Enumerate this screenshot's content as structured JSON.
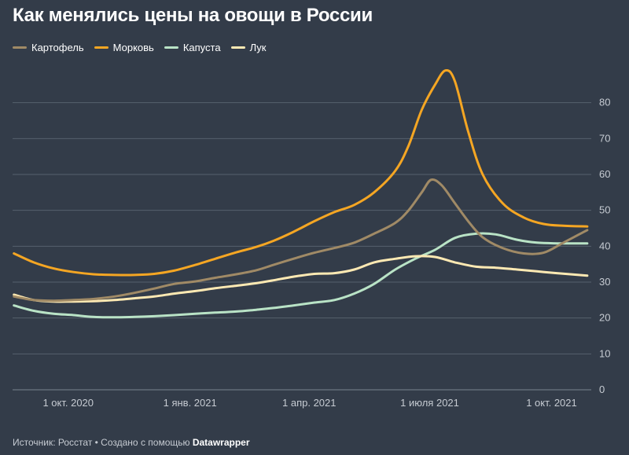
{
  "title": "Как менялись цены на овощи в России",
  "footer": {
    "source": "Источник: Росстат • Создано с помощью ",
    "brand": "Datawrapper"
  },
  "chart_data": {
    "type": "line",
    "title": "Как менялись цены на овощи в России",
    "xlabel": "",
    "ylabel": "",
    "ylim": [
      0,
      90
    ],
    "yticks": [
      0,
      10,
      20,
      30,
      40,
      50,
      60,
      70,
      80
    ],
    "xlim": [
      "2020-08-20",
      "2021-10-31"
    ],
    "xticks": [
      {
        "date": "2020-10-01",
        "label": "1 окт. 2020"
      },
      {
        "date": "2021-01-01",
        "label": "1 янв. 2021"
      },
      {
        "date": "2021-04-01",
        "label": "1 апр. 2021"
      },
      {
        "date": "2021-07-01",
        "label": "1 июля 2021"
      },
      {
        "date": "2021-10-01",
        "label": "1 окт. 2021"
      }
    ],
    "grid": true,
    "legend_position": "top-left",
    "colors": {
      "background": "#333c49",
      "grid": "#56606d",
      "text": "#ffffff",
      "axis_text": "#c6cbd2"
    },
    "series": [
      {
        "name": "Картофель",
        "color": "#a08a66",
        "points": [
          [
            "2020-08-21",
            26.0
          ],
          [
            "2020-09-05",
            25.0
          ],
          [
            "2020-09-20",
            24.8
          ],
          [
            "2020-10-05",
            25.0
          ],
          [
            "2020-10-20",
            25.3
          ],
          [
            "2020-11-05",
            26.0
          ],
          [
            "2020-11-20",
            27.0
          ],
          [
            "2020-12-05",
            28.2
          ],
          [
            "2020-12-20",
            29.5
          ],
          [
            "2021-01-05",
            30.2
          ],
          [
            "2021-01-20",
            31.2
          ],
          [
            "2021-02-05",
            32.2
          ],
          [
            "2021-02-20",
            33.3
          ],
          [
            "2021-03-05",
            34.8
          ],
          [
            "2021-03-20",
            36.5
          ],
          [
            "2021-04-05",
            38.2
          ],
          [
            "2021-04-20",
            39.5
          ],
          [
            "2021-05-05",
            41.0
          ],
          [
            "2021-05-20",
            43.5
          ],
          [
            "2021-06-05",
            46.5
          ],
          [
            "2021-06-15",
            50.0
          ],
          [
            "2021-06-25",
            55.0
          ],
          [
            "2021-07-02",
            58.5
          ],
          [
            "2021-07-10",
            57.0
          ],
          [
            "2021-07-20",
            52.0
          ],
          [
            "2021-07-30",
            47.0
          ],
          [
            "2021-08-10",
            42.5
          ],
          [
            "2021-08-25",
            39.5
          ],
          [
            "2021-09-10",
            38.0
          ],
          [
            "2021-09-25",
            38.2
          ],
          [
            "2021-10-10",
            41.0
          ],
          [
            "2021-10-28",
            44.5
          ]
        ]
      },
      {
        "name": "Морковь",
        "color": "#f5a623",
        "points": [
          [
            "2020-08-21",
            38.0
          ],
          [
            "2020-09-05",
            35.5
          ],
          [
            "2020-09-20",
            33.8
          ],
          [
            "2020-10-05",
            32.8
          ],
          [
            "2020-10-20",
            32.2
          ],
          [
            "2020-11-05",
            32.0
          ],
          [
            "2020-11-20",
            32.0
          ],
          [
            "2020-12-05",
            32.3
          ],
          [
            "2020-12-20",
            33.2
          ],
          [
            "2021-01-05",
            34.8
          ],
          [
            "2021-01-20",
            36.5
          ],
          [
            "2021-02-05",
            38.3
          ],
          [
            "2021-02-20",
            39.8
          ],
          [
            "2021-03-05",
            41.5
          ],
          [
            "2021-03-20",
            44.0
          ],
          [
            "2021-04-05",
            47.0
          ],
          [
            "2021-04-20",
            49.5
          ],
          [
            "2021-05-05",
            51.5
          ],
          [
            "2021-05-20",
            55.0
          ],
          [
            "2021-06-05",
            61.0
          ],
          [
            "2021-06-15",
            68.0
          ],
          [
            "2021-06-25",
            78.0
          ],
          [
            "2021-07-05",
            85.0
          ],
          [
            "2021-07-13",
            89.0
          ],
          [
            "2021-07-20",
            86.0
          ],
          [
            "2021-07-30",
            72.0
          ],
          [
            "2021-08-10",
            60.0
          ],
          [
            "2021-08-25",
            52.0
          ],
          [
            "2021-09-10",
            48.0
          ],
          [
            "2021-09-25",
            46.2
          ],
          [
            "2021-10-10",
            45.7
          ],
          [
            "2021-10-28",
            45.5
          ]
        ]
      },
      {
        "name": "Капуста",
        "color": "#b9e3c6",
        "points": [
          [
            "2020-08-21",
            23.5
          ],
          [
            "2020-09-05",
            22.0
          ],
          [
            "2020-09-20",
            21.2
          ],
          [
            "2020-10-05",
            20.8
          ],
          [
            "2020-10-20",
            20.3
          ],
          [
            "2020-11-05",
            20.2
          ],
          [
            "2020-11-20",
            20.3
          ],
          [
            "2020-12-05",
            20.5
          ],
          [
            "2020-12-20",
            20.8
          ],
          [
            "2021-01-05",
            21.2
          ],
          [
            "2021-01-20",
            21.5
          ],
          [
            "2021-02-05",
            21.8
          ],
          [
            "2021-02-20",
            22.3
          ],
          [
            "2021-03-05",
            22.8
          ],
          [
            "2021-03-20",
            23.5
          ],
          [
            "2021-04-05",
            24.3
          ],
          [
            "2021-04-20",
            25.0
          ],
          [
            "2021-05-05",
            26.8
          ],
          [
            "2021-05-20",
            29.5
          ],
          [
            "2021-06-05",
            33.5
          ],
          [
            "2021-06-20",
            36.5
          ],
          [
            "2021-07-05",
            39.0
          ],
          [
            "2021-07-20",
            42.3
          ],
          [
            "2021-08-05",
            43.5
          ],
          [
            "2021-08-20",
            43.3
          ],
          [
            "2021-09-05",
            41.8
          ],
          [
            "2021-09-20",
            41.0
          ],
          [
            "2021-10-05",
            40.8
          ],
          [
            "2021-10-28",
            40.8
          ]
        ]
      },
      {
        "name": "Лук",
        "color": "#fde9b3",
        "points": [
          [
            "2020-08-21",
            26.5
          ],
          [
            "2020-09-05",
            25.0
          ],
          [
            "2020-09-20",
            24.6
          ],
          [
            "2020-10-05",
            24.6
          ],
          [
            "2020-10-20",
            24.7
          ],
          [
            "2020-11-05",
            25.0
          ],
          [
            "2020-11-20",
            25.5
          ],
          [
            "2020-12-05",
            26.0
          ],
          [
            "2020-12-20",
            26.8
          ],
          [
            "2021-01-05",
            27.5
          ],
          [
            "2021-01-20",
            28.3
          ],
          [
            "2021-02-05",
            29.0
          ],
          [
            "2021-02-20",
            29.7
          ],
          [
            "2021-03-05",
            30.5
          ],
          [
            "2021-03-20",
            31.5
          ],
          [
            "2021-04-05",
            32.3
          ],
          [
            "2021-04-20",
            32.5
          ],
          [
            "2021-05-05",
            33.5
          ],
          [
            "2021-05-20",
            35.5
          ],
          [
            "2021-06-05",
            36.5
          ],
          [
            "2021-06-20",
            37.2
          ],
          [
            "2021-07-05",
            37.0
          ],
          [
            "2021-07-20",
            35.5
          ],
          [
            "2021-08-05",
            34.3
          ],
          [
            "2021-08-20",
            34.0
          ],
          [
            "2021-09-05",
            33.5
          ],
          [
            "2021-09-20",
            33.0
          ],
          [
            "2021-10-05",
            32.5
          ],
          [
            "2021-10-28",
            31.8
          ]
        ]
      }
    ]
  }
}
